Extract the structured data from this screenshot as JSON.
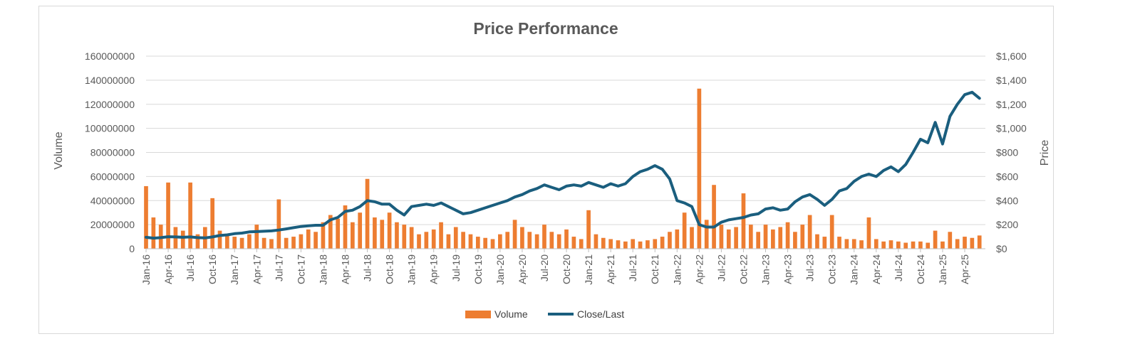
{
  "chart_data": {
    "type": "bar+line",
    "title": "Price Performance",
    "ylabel": "Volume",
    "y2label": "Price",
    "ylim": [
      0,
      160000000
    ],
    "y2lim": [
      0,
      1600
    ],
    "y_ticks": [
      0,
      20000000,
      40000000,
      60000000,
      80000000,
      100000000,
      120000000,
      140000000,
      160000000
    ],
    "y_tick_labels": [
      "0",
      "20000000",
      "40000000",
      "60000000",
      "80000000",
      "100000000",
      "120000000",
      "140000000",
      "160000000"
    ],
    "y2_ticks": [
      0,
      200,
      400,
      600,
      800,
      1000,
      1200,
      1400,
      1600
    ],
    "y2_tick_labels": [
      "$0",
      "$200",
      "$400",
      "$600",
      "$800",
      "$1,000",
      "$1,200",
      "$1,400",
      "$1,600"
    ],
    "x_tick_labels": [
      "Jan-16",
      "Apr-16",
      "Jul-16",
      "Oct-16",
      "Jan-17",
      "Apr-17",
      "Jul-17",
      "Oct-17",
      "Jan-18",
      "Apr-18",
      "Jul-18",
      "Oct-18",
      "Jan-19",
      "Apr-19",
      "Jul-19",
      "Oct-19",
      "Jan-20",
      "Apr-20",
      "Jul-20",
      "Oct-20",
      "Jan-21",
      "Apr-21",
      "Jul-21",
      "Oct-21",
      "Jan-22",
      "Apr-22",
      "Jul-22",
      "Oct-22",
      "Jan-23",
      "Apr-23",
      "Jul-23",
      "Oct-23",
      "Jan-24",
      "Apr-24",
      "Jul-24",
      "Oct-24",
      "Jan-25",
      "Apr-25"
    ],
    "x_range": [
      "Jan-16",
      "Jun-25"
    ],
    "grid": true,
    "legend_position": "bottom",
    "series": [
      {
        "name": "Volume",
        "kind": "bar",
        "axis": "left",
        "color": "#ed7d31",
        "x": [
          "Jan-16",
          "Feb-16",
          "Mar-16",
          "Apr-16",
          "May-16",
          "Jun-16",
          "Jul-16",
          "Aug-16",
          "Sep-16",
          "Oct-16",
          "Nov-16",
          "Dec-16",
          "Jan-17",
          "Feb-17",
          "Mar-17",
          "Apr-17",
          "May-17",
          "Jun-17",
          "Jul-17",
          "Aug-17",
          "Sep-17",
          "Oct-17",
          "Nov-17",
          "Dec-17",
          "Jan-18",
          "Feb-18",
          "Mar-18",
          "Apr-18",
          "May-18",
          "Jun-18",
          "Jul-18",
          "Aug-18",
          "Sep-18",
          "Oct-18",
          "Nov-18",
          "Dec-18",
          "Jan-19",
          "Feb-19",
          "Mar-19",
          "Apr-19",
          "May-19",
          "Jun-19",
          "Jul-19",
          "Aug-19",
          "Sep-19",
          "Oct-19",
          "Nov-19",
          "Dec-19",
          "Jan-20",
          "Feb-20",
          "Mar-20",
          "Apr-20",
          "May-20",
          "Jun-20",
          "Jul-20",
          "Aug-20",
          "Sep-20",
          "Oct-20",
          "Nov-20",
          "Dec-20",
          "Jan-21",
          "Feb-21",
          "Mar-21",
          "Apr-21",
          "May-21",
          "Jun-21",
          "Jul-21",
          "Aug-21",
          "Sep-21",
          "Oct-21",
          "Nov-21",
          "Dec-21",
          "Jan-22",
          "Feb-22",
          "Mar-22",
          "Apr-22",
          "May-22",
          "Jun-22",
          "Jul-22",
          "Aug-22",
          "Sep-22",
          "Oct-22",
          "Nov-22",
          "Dec-22",
          "Jan-23",
          "Feb-23",
          "Mar-23",
          "Apr-23",
          "May-23",
          "Jun-23",
          "Jul-23",
          "Aug-23",
          "Sep-23",
          "Oct-23",
          "Nov-23",
          "Dec-23",
          "Jan-24",
          "Feb-24",
          "Mar-24",
          "Apr-24",
          "May-24",
          "Jun-24",
          "Jul-24",
          "Aug-24",
          "Sep-24",
          "Oct-24",
          "Nov-24",
          "Dec-24",
          "Jan-25",
          "Feb-25",
          "Mar-25",
          "Apr-25",
          "May-25",
          "Jun-25"
        ],
        "values": [
          52000000,
          26000000,
          20000000,
          55000000,
          18000000,
          15000000,
          55000000,
          12000000,
          18000000,
          42000000,
          15000000,
          12000000,
          10000000,
          9000000,
          12000000,
          20000000,
          9000000,
          8000000,
          41000000,
          9000000,
          10000000,
          12000000,
          16000000,
          14000000,
          22000000,
          28000000,
          25000000,
          36000000,
          22000000,
          30000000,
          58000000,
          26000000,
          24000000,
          30000000,
          22000000,
          20000000,
          18000000,
          12000000,
          14000000,
          16000000,
          22000000,
          12000000,
          18000000,
          14000000,
          12000000,
          10000000,
          9000000,
          8000000,
          12000000,
          14000000,
          24000000,
          18000000,
          14000000,
          12000000,
          20000000,
          14000000,
          12000000,
          16000000,
          10000000,
          8000000,
          32000000,
          12000000,
          9000000,
          8000000,
          7000000,
          6000000,
          8000000,
          6000000,
          7000000,
          8000000,
          10000000,
          14000000,
          16000000,
          30000000,
          18000000,
          133000000,
          24000000,
          53000000,
          20000000,
          16000000,
          18000000,
          46000000,
          20000000,
          14000000,
          20000000,
          16000000,
          18000000,
          22000000,
          14000000,
          20000000,
          28000000,
          12000000,
          10000000,
          28000000,
          10000000,
          8000000,
          8000000,
          7000000,
          26000000,
          8000000,
          6000000,
          7000000,
          6000000,
          5000000,
          6000000,
          6000000,
          5000000,
          15000000,
          6000000,
          14000000,
          8000000,
          10000000,
          9000000,
          11000000
        ]
      },
      {
        "name": "Close/Last",
        "kind": "line",
        "axis": "right",
        "color": "#1a5e7e",
        "x": [
          "Jan-16",
          "Feb-16",
          "Mar-16",
          "Apr-16",
          "May-16",
          "Jun-16",
          "Jul-16",
          "Aug-16",
          "Sep-16",
          "Oct-16",
          "Nov-16",
          "Dec-16",
          "Jan-17",
          "Feb-17",
          "Mar-17",
          "Apr-17",
          "May-17",
          "Jun-17",
          "Jul-17",
          "Aug-17",
          "Sep-17",
          "Oct-17",
          "Nov-17",
          "Dec-17",
          "Jan-18",
          "Feb-18",
          "Mar-18",
          "Apr-18",
          "May-18",
          "Jun-18",
          "Jul-18",
          "Aug-18",
          "Sep-18",
          "Oct-18",
          "Nov-18",
          "Dec-18",
          "Jan-19",
          "Feb-19",
          "Mar-19",
          "Apr-19",
          "May-19",
          "Jun-19",
          "Jul-19",
          "Aug-19",
          "Sep-19",
          "Oct-19",
          "Nov-19",
          "Dec-19",
          "Jan-20",
          "Feb-20",
          "Mar-20",
          "Apr-20",
          "May-20",
          "Jun-20",
          "Jul-20",
          "Aug-20",
          "Sep-20",
          "Oct-20",
          "Nov-20",
          "Dec-20",
          "Jan-21",
          "Feb-21",
          "Mar-21",
          "Apr-21",
          "May-21",
          "Jun-21",
          "Jul-21",
          "Aug-21",
          "Sep-21",
          "Oct-21",
          "Nov-21",
          "Dec-21",
          "Jan-22",
          "Feb-22",
          "Mar-22",
          "Apr-22",
          "May-22",
          "Jun-22",
          "Jul-22",
          "Aug-22",
          "Sep-22",
          "Oct-22",
          "Nov-22",
          "Dec-22",
          "Jan-23",
          "Feb-23",
          "Mar-23",
          "Apr-23",
          "May-23",
          "Jun-23",
          "Jul-23",
          "Aug-23",
          "Sep-23",
          "Oct-23",
          "Nov-23",
          "Dec-23",
          "Jan-24",
          "Feb-24",
          "Mar-24",
          "Apr-24",
          "May-24",
          "Jun-24",
          "Jul-24",
          "Aug-24",
          "Sep-24",
          "Oct-24",
          "Nov-24",
          "Dec-24",
          "Jan-25",
          "Feb-25",
          "Mar-25",
          "Apr-25",
          "May-25",
          "Jun-25"
        ],
        "values": [
          95,
          88,
          92,
          100,
          98,
          95,
          98,
          92,
          90,
          98,
          110,
          115,
          125,
          130,
          140,
          142,
          145,
          148,
          155,
          165,
          175,
          185,
          190,
          195,
          195,
          240,
          260,
          310,
          320,
          350,
          400,
          390,
          370,
          370,
          320,
          280,
          350,
          360,
          370,
          360,
          380,
          350,
          320,
          290,
          300,
          320,
          340,
          360,
          380,
          400,
          430,
          450,
          480,
          500,
          530,
          510,
          490,
          520,
          530,
          520,
          550,
          530,
          510,
          540,
          520,
          540,
          600,
          640,
          660,
          690,
          660,
          580,
          400,
          380,
          350,
          200,
          180,
          180,
          220,
          240,
          250,
          260,
          280,
          290,
          330,
          340,
          320,
          330,
          390,
          430,
          450,
          410,
          360,
          410,
          480,
          500,
          560,
          600,
          620,
          600,
          650,
          680,
          640,
          700,
          800,
          910,
          880,
          1050,
          870,
          1100,
          1200,
          1280,
          1300,
          1250
        ]
      }
    ]
  }
}
